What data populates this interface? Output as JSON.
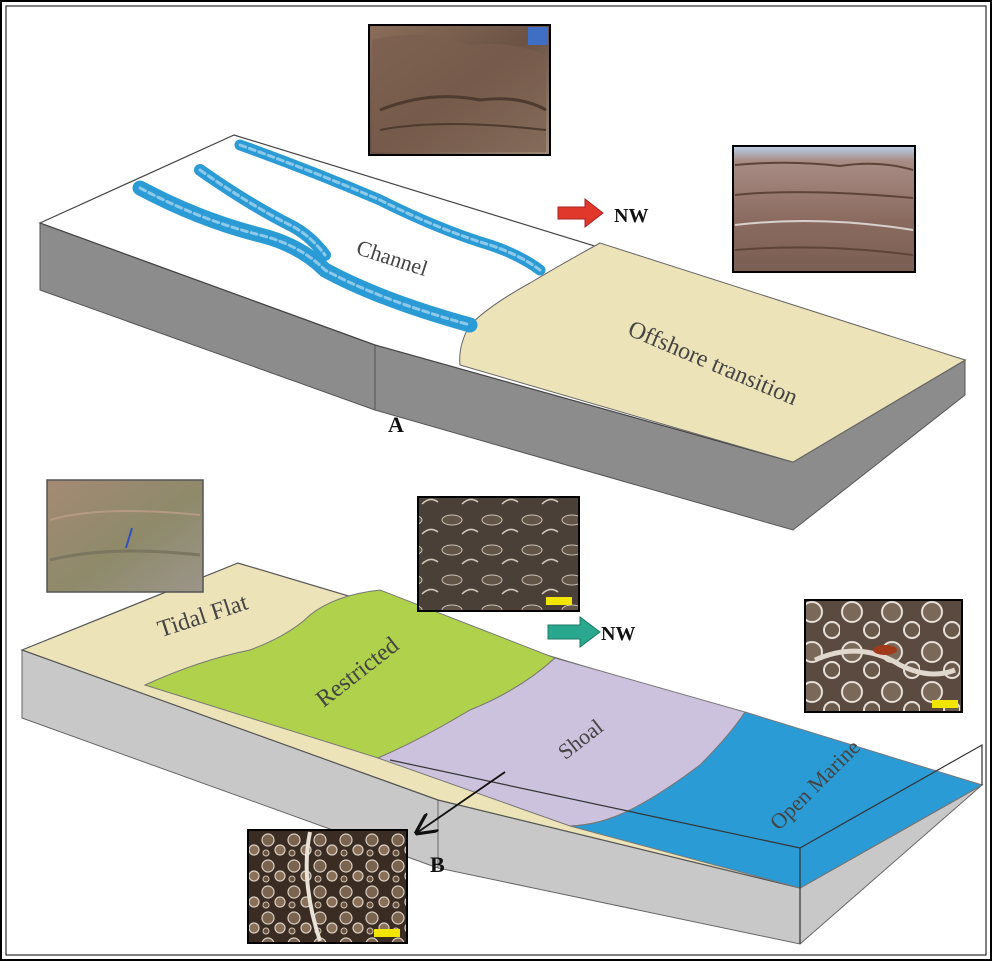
{
  "panel_a": {
    "marker": "A",
    "channel_label": "Channel",
    "offshore_label": "Offshore transition",
    "direction_label": "NW",
    "colors": {
      "top": "#ffffff",
      "offshore": "#ede3b8",
      "side": "#8c8c8c",
      "channel": "#2b9bd6",
      "arrow": "#e0392b"
    },
    "photos": [
      "outcrop-photo",
      "outcrop-photo"
    ]
  },
  "panel_b": {
    "marker": "B",
    "tidal_label": "Tidal Flat",
    "restricted_label": "Restricted",
    "shoal_label": "Shoal",
    "open_marine_label": "Open Marine",
    "direction_label": "NW",
    "colors": {
      "tidal": "#ede3b8",
      "restricted": "#afd14b",
      "shoal": "#cdc2dd",
      "open_marine": "#2b9bd6",
      "side": "#c8c8c8",
      "arrow": "#2aa88f",
      "scale_bar": "#f2e600"
    },
    "photos": [
      "outcrop-photo",
      "thin-section-photo",
      "thin-section-photo",
      "thin-section-photo"
    ]
  }
}
